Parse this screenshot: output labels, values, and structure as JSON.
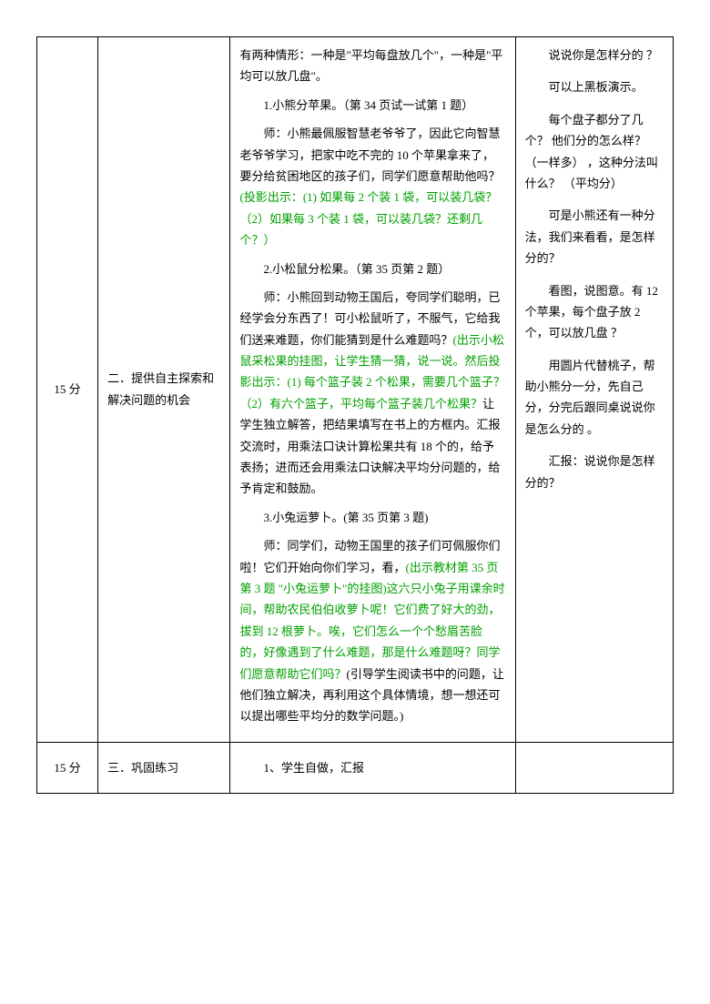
{
  "rows": [
    {
      "time": " 15 分",
      "section": "        二．提供自主探索和解决问题的机会",
      "mainContent": [
        {
          "text": "有两种情形：一种是\"平均每盘放几个\"，一种是\"平均可以放几盘\"。",
          "indent": false,
          "color": "black"
        },
        {
          "text": "1.小熊分苹果。（第 34 页试一试第 1 题）",
          "indent": true,
          "color": "black"
        },
        {
          "text": "师：小熊最佩服智慧老爷爷了，因此它向智慧老爷爷学习，把家中吃不完的 10 个苹果拿来了，要分给贫困地区的孩子们，同学们愿意帮助他吗？",
          "indent": true,
          "color": "black",
          "inline": true
        },
        {
          "text": "(投影出示：(1) 如果每 2 个装 1 袋，可以装几袋？（2）如果每 3 个装 1 袋，可以装几袋？还剩几个？）",
          "indent": false,
          "color": "green",
          "inline": true
        },
        {
          "text": "2.小松鼠分松果。（第 35 页第 2 题）",
          "indent": true,
          "color": "black"
        },
        {
          "text": "师：小熊回到动物王国后，夸同学们聪明，已经学会分东西了！可小松鼠听了，不服气，它给我们送来难题，你们能猜到是什么难题吗？",
          "indent": true,
          "color": "black",
          "inline": true
        },
        {
          "text": "(出示小松鼠采松果的挂图，让学生猜一猜，说一说。然后投影出示：(1) 每个篮子装 2 个松果，需要几个篮子？（2）有六个篮子，平均每个篮子装几个松果？",
          "indent": false,
          "color": "green",
          "inline": true
        },
        {
          "text": "让学生独立解答，把结果填写在书上的方框内。汇报交流时，用乘法口诀计算松果共有 18 个的，给予表扬；进而还会用乘法口诀解决平均分问题的，给予肯定和鼓励。",
          "indent": false,
          "color": "black",
          "inline": true
        },
        {
          "text": "3.小兔运萝卜。(第 35 页第 3 题)",
          "indent": true,
          "color": "black"
        },
        {
          "text": "师：同学们，动物王国里的孩子们可佩服你们啦！它们开始向你们学习，看，",
          "indent": true,
          "color": "black",
          "inline": true
        },
        {
          "text": "(出示教材第 35 页第 3 题 \"小兔运萝卜\"的挂图)这六只小兔子用课余时间，帮助农民伯伯收萝卜呢！它们费了好大的劲，拔到 12 根萝卜。唉，它们怎么一个个愁眉苦脸的，好像遇到了什么难题，那是什么难题呀？同学们愿意帮助它们吗？",
          "indent": false,
          "color": "green",
          "inline": true
        },
        {
          "text": "(引导学生阅读书中的问题，让他们独立解决，再利用这个具体情境，想一想还可以提出哪些平均分的数学问题。)",
          "indent": false,
          "color": "black",
          "inline": true
        }
      ],
      "notes": [
        {
          "text": "说说你是怎样分的 ？"
        },
        {
          "text": "可以上黑板演示。"
        },
        {
          "text": "每个盘子都分了几个？ 他们分的怎么样？ （一样多） ，这种分法叫什么？ （平均分）"
        },
        {
          "text": "可是小熊还有一种分法，我们来看看，是怎样分的？"
        },
        {
          "text": "看图，说图意。有 12 个苹果，每个盘子放 2 个，可以放几盘 ？"
        },
        {
          "text": "用圆片代替桃子，帮助小熊分一分，先自己分，分完后跟同桌说说你是怎么分的 。"
        },
        {
          "text": "汇报：说说你是怎样分的？"
        }
      ]
    },
    {
      "time": " 15 分",
      "section": "        三．巩固练习",
      "mainContent": [
        {
          "text": " ",
          "indent": false,
          "color": "black"
        },
        {
          "text": "1、学生自做，汇报",
          "indent": true,
          "color": "black"
        }
      ],
      "notes": []
    }
  ]
}
